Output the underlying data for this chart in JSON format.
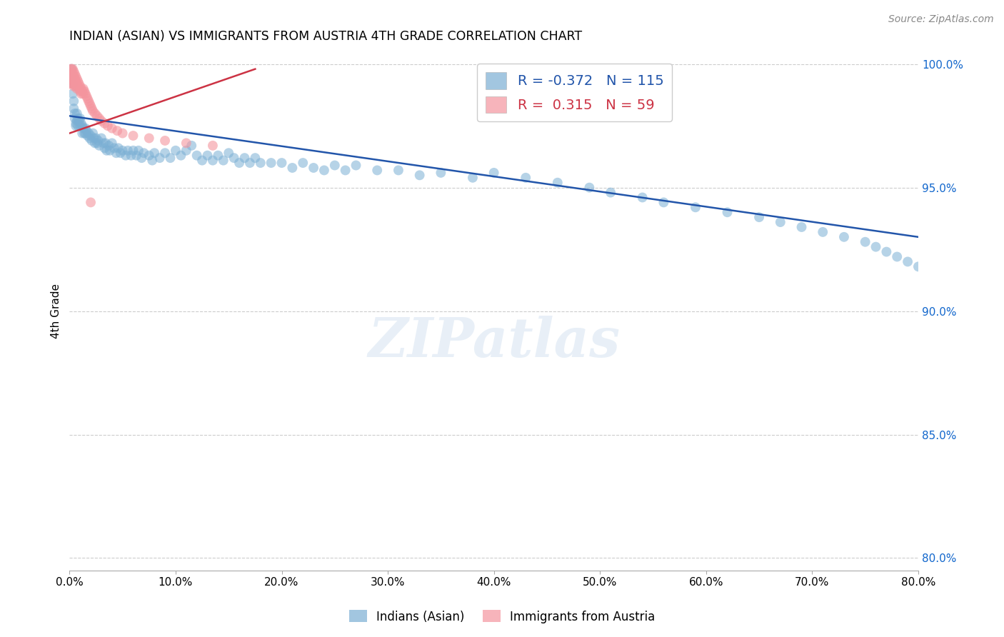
{
  "title": "INDIAN (ASIAN) VS IMMIGRANTS FROM AUSTRIA 4TH GRADE CORRELATION CHART",
  "source": "Source: ZipAtlas.com",
  "ylabel": "4th Grade",
  "xlim": [
    0.0,
    0.8
  ],
  "ylim": [
    0.795,
    1.005
  ],
  "xtick_labels": [
    "0.0%",
    "10.0%",
    "20.0%",
    "30.0%",
    "40.0%",
    "50.0%",
    "60.0%",
    "70.0%",
    "80.0%"
  ],
  "ytick_labels": [
    "80.0%",
    "85.0%",
    "90.0%",
    "95.0%",
    "100.0%"
  ],
  "ytick_values": [
    0.8,
    0.85,
    0.9,
    0.95,
    1.0
  ],
  "xtick_values": [
    0.0,
    0.1,
    0.2,
    0.3,
    0.4,
    0.5,
    0.6,
    0.7,
    0.8
  ],
  "legend_blue_r": "-0.372",
  "legend_blue_n": "115",
  "legend_pink_r": "0.315",
  "legend_pink_n": "59",
  "blue_color": "#7BAFD4",
  "pink_color": "#F4959E",
  "trendline_blue_color": "#2255AA",
  "trendline_pink_color": "#CC3344",
  "grid_color": "#CCCCCC",
  "background_color": "#FFFFFF",
  "watermark": "ZIPatlas",
  "blue_trendline_x": [
    0.0,
    0.8
  ],
  "blue_trendline_y": [
    0.979,
    0.93
  ],
  "pink_trendline_x": [
    0.0,
    0.175
  ],
  "pink_trendline_y": [
    0.972,
    0.998
  ],
  "blue_x": [
    0.002,
    0.002,
    0.003,
    0.003,
    0.004,
    0.004,
    0.005,
    0.005,
    0.006,
    0.006,
    0.007,
    0.007,
    0.008,
    0.008,
    0.009,
    0.01,
    0.01,
    0.011,
    0.012,
    0.012,
    0.013,
    0.014,
    0.015,
    0.015,
    0.016,
    0.017,
    0.018,
    0.019,
    0.02,
    0.021,
    0.022,
    0.023,
    0.024,
    0.025,
    0.026,
    0.027,
    0.028,
    0.03,
    0.032,
    0.033,
    0.034,
    0.035,
    0.037,
    0.038,
    0.04,
    0.042,
    0.044,
    0.046,
    0.048,
    0.05,
    0.053,
    0.055,
    0.058,
    0.06,
    0.063,
    0.065,
    0.068,
    0.07,
    0.075,
    0.078,
    0.08,
    0.085,
    0.09,
    0.095,
    0.1,
    0.105,
    0.11,
    0.115,
    0.12,
    0.125,
    0.13,
    0.135,
    0.14,
    0.145,
    0.15,
    0.155,
    0.16,
    0.165,
    0.17,
    0.175,
    0.18,
    0.19,
    0.2,
    0.21,
    0.22,
    0.23,
    0.24,
    0.25,
    0.26,
    0.27,
    0.29,
    0.31,
    0.33,
    0.35,
    0.38,
    0.4,
    0.43,
    0.46,
    0.49,
    0.51,
    0.54,
    0.56,
    0.59,
    0.62,
    0.65,
    0.67,
    0.69,
    0.71,
    0.73,
    0.75,
    0.76,
    0.77,
    0.78,
    0.79,
    0.8
  ],
  "blue_y": [
    0.998,
    0.994,
    0.992,
    0.988,
    0.985,
    0.982,
    0.98,
    0.978,
    0.976,
    0.975,
    0.98,
    0.977,
    0.978,
    0.975,
    0.977,
    0.978,
    0.975,
    0.976,
    0.975,
    0.972,
    0.974,
    0.972,
    0.974,
    0.972,
    0.973,
    0.971,
    0.972,
    0.97,
    0.971,
    0.969,
    0.972,
    0.97,
    0.968,
    0.97,
    0.968,
    0.969,
    0.967,
    0.97,
    0.968,
    0.966,
    0.968,
    0.965,
    0.967,
    0.965,
    0.968,
    0.966,
    0.964,
    0.966,
    0.964,
    0.965,
    0.963,
    0.965,
    0.963,
    0.965,
    0.963,
    0.965,
    0.962,
    0.964,
    0.963,
    0.961,
    0.964,
    0.962,
    0.964,
    0.962,
    0.965,
    0.963,
    0.965,
    0.967,
    0.963,
    0.961,
    0.963,
    0.961,
    0.963,
    0.961,
    0.964,
    0.962,
    0.96,
    0.962,
    0.96,
    0.962,
    0.96,
    0.96,
    0.96,
    0.958,
    0.96,
    0.958,
    0.957,
    0.959,
    0.957,
    0.959,
    0.957,
    0.957,
    0.955,
    0.956,
    0.954,
    0.956,
    0.954,
    0.952,
    0.95,
    0.948,
    0.946,
    0.944,
    0.942,
    0.94,
    0.938,
    0.936,
    0.934,
    0.932,
    0.93,
    0.928,
    0.926,
    0.924,
    0.922,
    0.92,
    0.918
  ],
  "pink_x": [
    0.001,
    0.001,
    0.001,
    0.002,
    0.002,
    0.002,
    0.002,
    0.003,
    0.003,
    0.003,
    0.003,
    0.004,
    0.004,
    0.004,
    0.004,
    0.005,
    0.005,
    0.005,
    0.006,
    0.006,
    0.006,
    0.007,
    0.007,
    0.007,
    0.008,
    0.008,
    0.009,
    0.009,
    0.01,
    0.01,
    0.011,
    0.011,
    0.012,
    0.013,
    0.013,
    0.014,
    0.015,
    0.016,
    0.017,
    0.018,
    0.019,
    0.02,
    0.021,
    0.022,
    0.024,
    0.026,
    0.028,
    0.03,
    0.033,
    0.036,
    0.04,
    0.045,
    0.05,
    0.06,
    0.075,
    0.09,
    0.11,
    0.135,
    0.02
  ],
  "pink_y": [
    0.998,
    0.996,
    0.994,
    0.998,
    0.996,
    0.994,
    0.992,
    0.998,
    0.996,
    0.994,
    0.992,
    0.997,
    0.995,
    0.993,
    0.991,
    0.996,
    0.994,
    0.992,
    0.995,
    0.993,
    0.991,
    0.994,
    0.992,
    0.99,
    0.993,
    0.991,
    0.992,
    0.99,
    0.991,
    0.989,
    0.99,
    0.988,
    0.989,
    0.99,
    0.988,
    0.989,
    0.988,
    0.987,
    0.986,
    0.985,
    0.984,
    0.983,
    0.982,
    0.981,
    0.98,
    0.979,
    0.978,
    0.977,
    0.976,
    0.975,
    0.974,
    0.973,
    0.972,
    0.971,
    0.97,
    0.969,
    0.968,
    0.967,
    0.944
  ]
}
